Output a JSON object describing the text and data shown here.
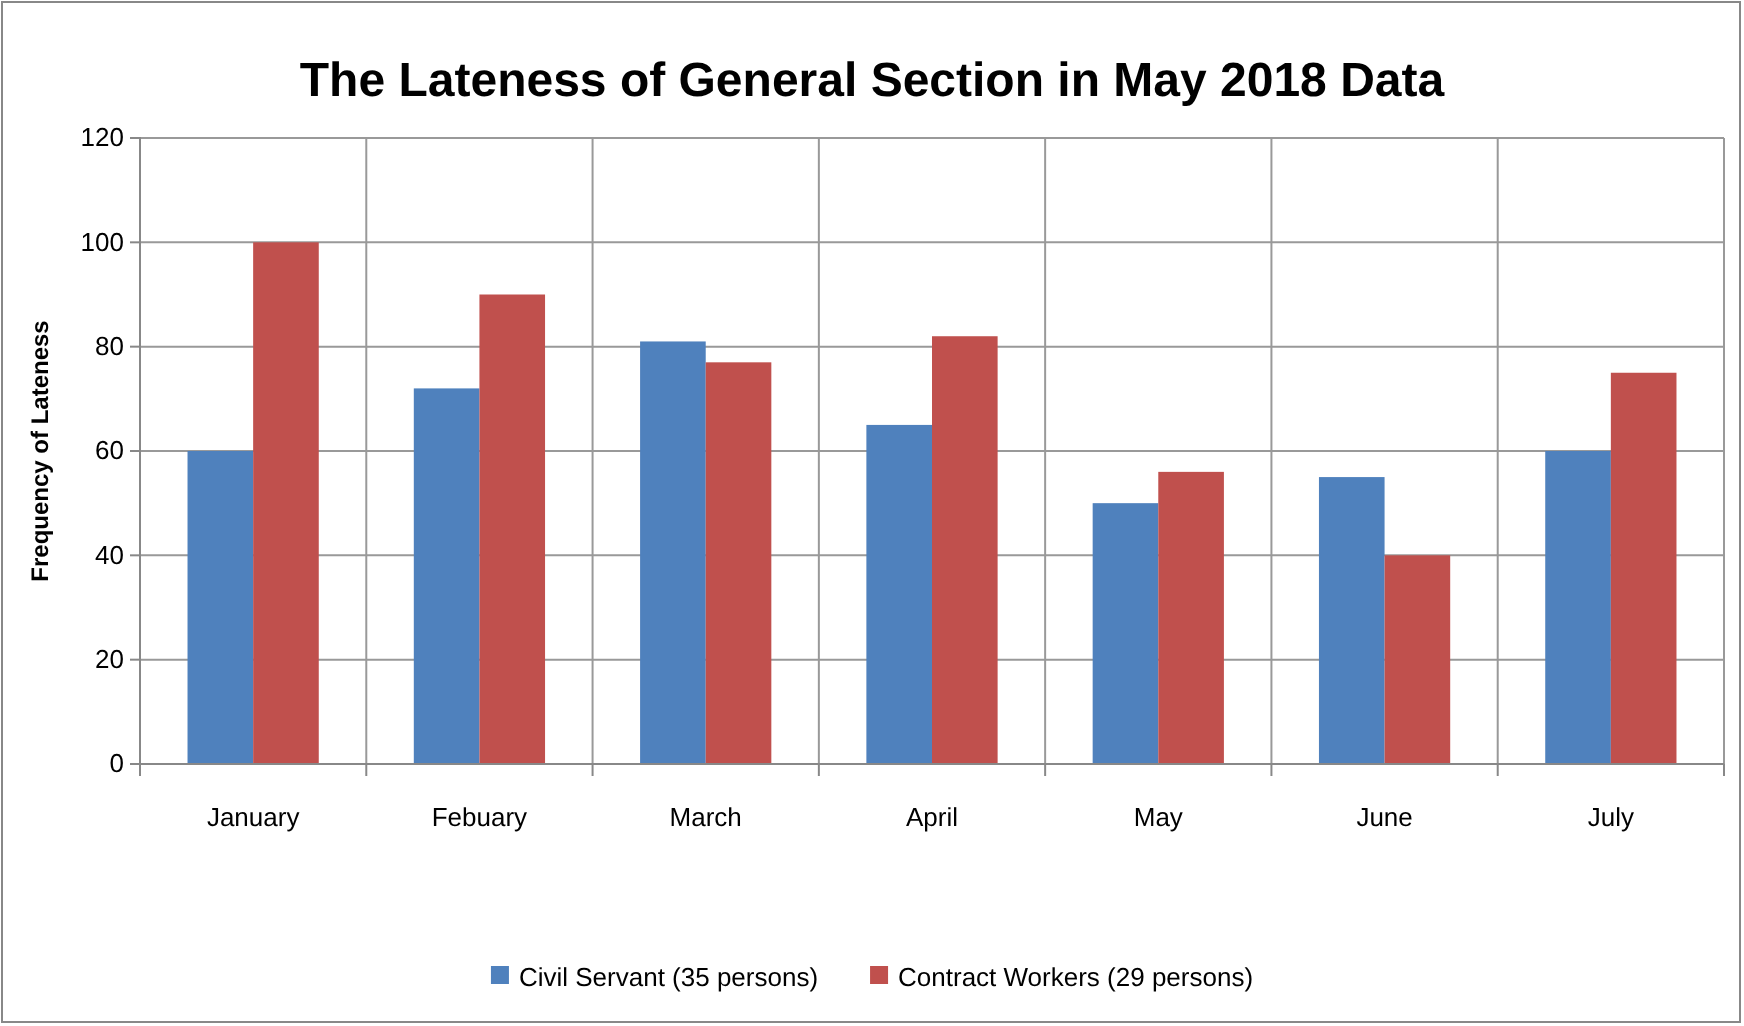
{
  "chart_data": {
    "type": "bar",
    "title": "The Lateness of General Section in May 2018 Data",
    "ylabel": "Frequency of Lateness",
    "categories": [
      "January",
      "Febuary",
      "March",
      "April",
      "May",
      "June",
      "July"
    ],
    "series": [
      {
        "name": "Civil Servant (35 persons)",
        "color": "#4f81bd",
        "values": [
          60,
          72,
          81,
          65,
          50,
          55,
          60
        ]
      },
      {
        "name": "Contract Workers (29 persons)",
        "color": "#c0504d",
        "values": [
          100,
          90,
          77,
          82,
          56,
          40,
          75
        ]
      }
    ],
    "ylim": [
      0,
      120
    ],
    "yticks": [
      0,
      20,
      40,
      60,
      80,
      100,
      120
    ],
    "grid": true,
    "legend": "bottom"
  }
}
